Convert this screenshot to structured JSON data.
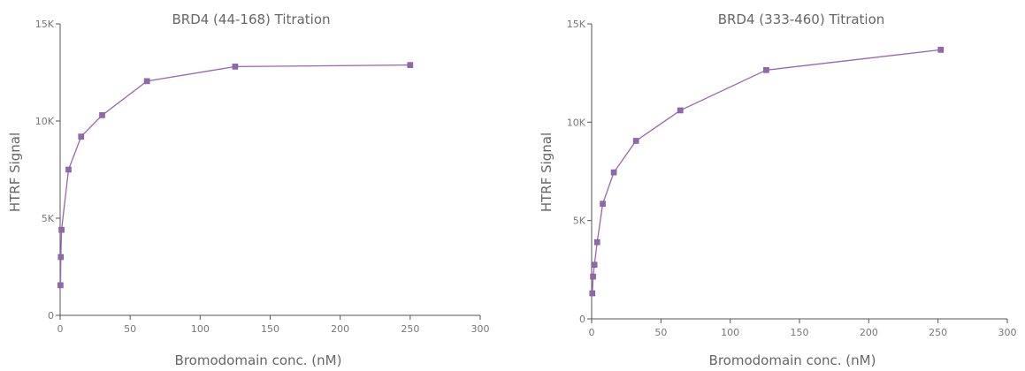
{
  "chart_data": [
    {
      "type": "line",
      "title": "BRD4 (44-168) Titration",
      "xlabel": "Bromodomain conc. (nM)",
      "ylabel": "HTRF Signal",
      "xlim": [
        0,
        300
      ],
      "ylim": [
        0,
        15000
      ],
      "x_ticks": [
        "0",
        "50",
        "100",
        "150",
        "200",
        "250",
        "300"
      ],
      "y_ticks": [
        "0",
        "5K",
        "10K",
        "15K"
      ],
      "grid": false,
      "legend": "none",
      "series": [
        {
          "color": "#9069aa",
          "x": [
            0.25,
            0.5,
            1,
            6,
            15,
            30,
            62,
            125,
            250
          ],
          "y": [
            1550,
            3000,
            4400,
            7500,
            9200,
            10300,
            12050,
            12800,
            12880
          ]
        }
      ]
    },
    {
      "type": "line",
      "title": "BRD4 (333-460) Titration",
      "xlabel": "Bromodomain conc. (nM)",
      "ylabel": "HTRF Signal",
      "xlim": [
        0,
        300
      ],
      "ylim": [
        0,
        15000
      ],
      "x_ticks": [
        "0",
        "50",
        "100",
        "150",
        "200",
        "250",
        "300"
      ],
      "y_ticks": [
        "0",
        "5K",
        "10K",
        "15K"
      ],
      "grid": false,
      "legend": "none",
      "series": [
        {
          "color": "#9069aa",
          "x": [
            0.5,
            1,
            2,
            4,
            8,
            16,
            32,
            64,
            126,
            252
          ],
          "y": [
            1300,
            2150,
            2750,
            3900,
            5850,
            7450,
            9050,
            10600,
            12650,
            13680
          ]
        }
      ]
    }
  ]
}
